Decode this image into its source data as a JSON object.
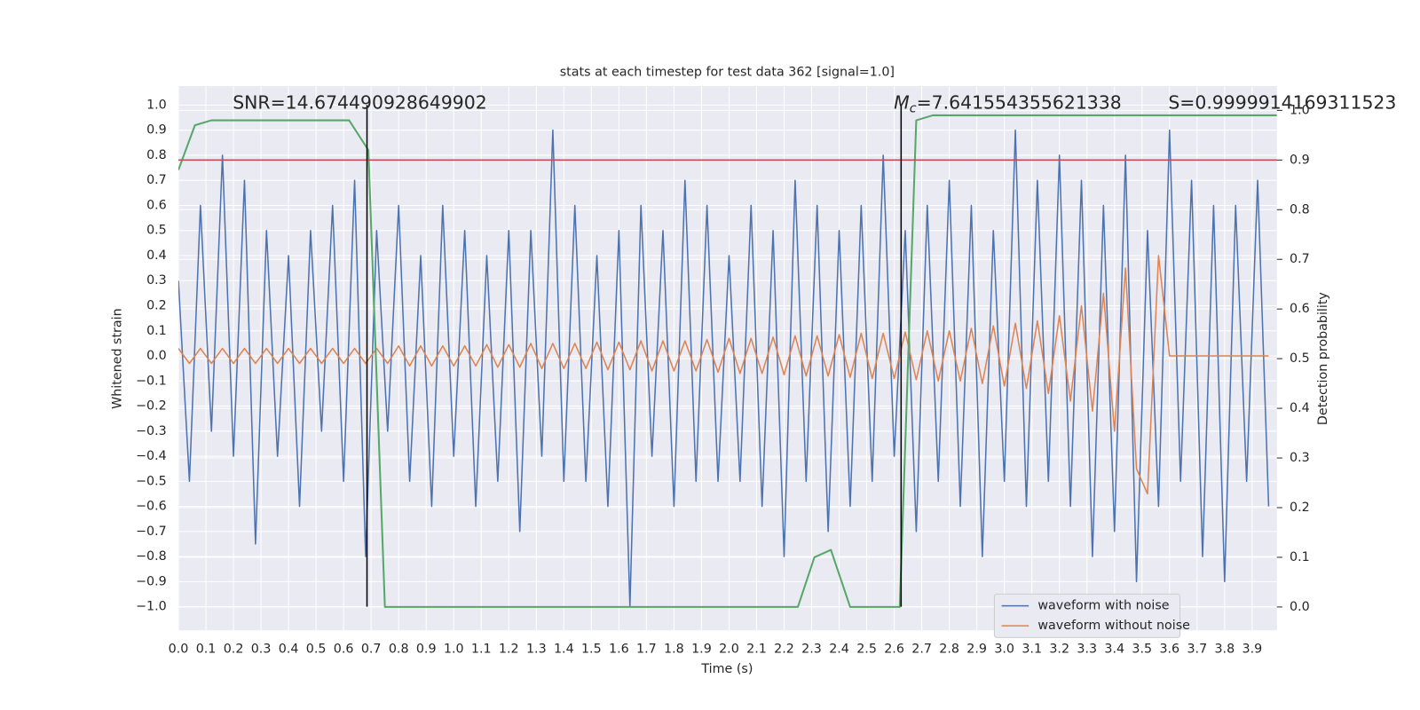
{
  "chart_data": {
    "type": "line",
    "title": "stats at each timestep for test data 362 [signal=1.0]",
    "xlabel": "Time (s)",
    "ylabel": "Whitened strain",
    "y2label": "Detection probability",
    "grid": true,
    "legend": "lower right",
    "xlim": [
      0,
      3.99
    ],
    "ylim": [
      -1.094,
      1.076
    ],
    "y2lim": [
      -0.047,
      1.049
    ],
    "xticks": [
      {
        "value": 0,
        "label": "0.0"
      },
      {
        "value": 0.1,
        "label": "0.1"
      },
      {
        "value": 0.2,
        "label": "0.2"
      },
      {
        "value": 0.3,
        "label": "0.3"
      },
      {
        "value": 0.4,
        "label": "0.4"
      },
      {
        "value": 0.5,
        "label": "0.5"
      },
      {
        "value": 0.6,
        "label": "0.6"
      },
      {
        "value": 0.7,
        "label": "0.7"
      },
      {
        "value": 0.8,
        "label": "0.8"
      },
      {
        "value": 0.9,
        "label": "0.9"
      },
      {
        "value": 1,
        "label": "1.0"
      },
      {
        "value": 1.1,
        "label": "1.1"
      },
      {
        "value": 1.2,
        "label": "1.2"
      },
      {
        "value": 1.3,
        "label": "1.3"
      },
      {
        "value": 1.4,
        "label": "1.4"
      },
      {
        "value": 1.5,
        "label": "1.5"
      },
      {
        "value": 1.6,
        "label": "1.6"
      },
      {
        "value": 1.7,
        "label": "1.7"
      },
      {
        "value": 1.8,
        "label": "1.8"
      },
      {
        "value": 1.9,
        "label": "1.9"
      },
      {
        "value": 2,
        "label": "2.0"
      },
      {
        "value": 2.1,
        "label": "2.1"
      },
      {
        "value": 2.2,
        "label": "2.2"
      },
      {
        "value": 2.3,
        "label": "2.3"
      },
      {
        "value": 2.4,
        "label": "2.4"
      },
      {
        "value": 2.5,
        "label": "2.5"
      },
      {
        "value": 2.6,
        "label": "2.6"
      },
      {
        "value": 2.7,
        "label": "2.7"
      },
      {
        "value": 2.8,
        "label": "2.8"
      },
      {
        "value": 2.9,
        "label": "2.9"
      },
      {
        "value": 3,
        "label": "3.0"
      },
      {
        "value": 3.1,
        "label": "3.1"
      },
      {
        "value": 3.2,
        "label": "3.2"
      },
      {
        "value": 3.3,
        "label": "3.3"
      },
      {
        "value": 3.4,
        "label": "3.4"
      },
      {
        "value": 3.5,
        "label": "3.5"
      },
      {
        "value": 3.6,
        "label": "3.6"
      },
      {
        "value": 3.7,
        "label": "3.7"
      },
      {
        "value": 3.8,
        "label": "3.8"
      },
      {
        "value": 3.9,
        "label": "3.9"
      }
    ],
    "yticks": [
      {
        "value": -1,
        "label": "−1.0"
      },
      {
        "value": -0.9,
        "label": "−0.9"
      },
      {
        "value": -0.8,
        "label": "−0.8"
      },
      {
        "value": -0.7,
        "label": "−0.7"
      },
      {
        "value": -0.6,
        "label": "−0.6"
      },
      {
        "value": -0.5,
        "label": "−0.5"
      },
      {
        "value": -0.4,
        "label": "−0.4"
      },
      {
        "value": -0.3,
        "label": "−0.3"
      },
      {
        "value": -0.2,
        "label": "−0.2"
      },
      {
        "value": -0.1,
        "label": "−0.1"
      },
      {
        "value": 0,
        "label": "0.0"
      },
      {
        "value": 0.1,
        "label": "0.1"
      },
      {
        "value": 0.2,
        "label": "0.2"
      },
      {
        "value": 0.3,
        "label": "0.3"
      },
      {
        "value": 0.4,
        "label": "0.4"
      },
      {
        "value": 0.5,
        "label": "0.5"
      },
      {
        "value": 0.6,
        "label": "0.6"
      },
      {
        "value": 0.7,
        "label": "0.7"
      },
      {
        "value": 0.8,
        "label": "0.8"
      },
      {
        "value": 0.9,
        "label": "0.9"
      },
      {
        "value": 1,
        "label": "1.0"
      }
    ],
    "y2ticks": [
      {
        "value": 0,
        "label": "0.0"
      },
      {
        "value": 0.1,
        "label": "0.1"
      },
      {
        "value": 0.2,
        "label": "0.2"
      },
      {
        "value": 0.3,
        "label": "0.3"
      },
      {
        "value": 0.4,
        "label": "0.4"
      },
      {
        "value": 0.5,
        "label": "0.5"
      },
      {
        "value": 0.6,
        "label": "0.6"
      },
      {
        "value": 0.7,
        "label": "0.7"
      },
      {
        "value": 0.8,
        "label": "0.8"
      },
      {
        "value": 0.9,
        "label": "0.9"
      },
      {
        "value": 1,
        "label": "1.0"
      }
    ],
    "x": [
      0,
      0.04,
      0.08,
      0.12,
      0.16,
      0.2,
      0.24,
      0.28,
      0.32,
      0.36,
      0.4,
      0.44,
      0.48,
      0.52,
      0.56,
      0.6,
      0.64,
      0.68,
      0.72,
      0.76,
      0.8,
      0.84,
      0.88,
      0.92,
      0.96,
      1,
      1.04,
      1.08,
      1.12,
      1.16,
      1.2,
      1.24,
      1.28,
      1.32,
      1.36,
      1.4,
      1.44,
      1.48,
      1.52,
      1.56,
      1.6,
      1.64,
      1.68,
      1.72,
      1.76,
      1.8,
      1.84,
      1.88,
      1.92,
      1.96,
      2,
      2.04,
      2.08,
      2.12,
      2.16,
      2.2,
      2.24,
      2.28,
      2.32,
      2.36,
      2.4,
      2.44,
      2.48,
      2.52,
      2.56,
      2.6,
      2.64,
      2.68,
      2.72,
      2.76,
      2.8,
      2.84,
      2.88,
      2.92,
      2.96,
      3,
      3.04,
      3.08,
      3.12,
      3.16,
      3.2,
      3.24,
      3.28,
      3.32,
      3.36,
      3.4,
      3.44,
      3.48,
      3.52,
      3.56,
      3.6,
      3.64,
      3.68,
      3.72,
      3.76,
      3.8,
      3.84,
      3.88,
      3.92,
      3.96
    ],
    "series": [
      {
        "name": "waveform with noise",
        "color": "#4c72b0",
        "values": [
          0.3,
          -0.5,
          0.6,
          -0.3,
          0.8,
          -0.4,
          0.7,
          -0.75,
          0.5,
          -0.4,
          0.4,
          -0.6,
          0.5,
          -0.3,
          0.6,
          -0.5,
          0.7,
          -0.8,
          0.5,
          -0.3,
          0.6,
          -0.5,
          0.4,
          -0.6,
          0.6,
          -0.4,
          0.5,
          -0.6,
          0.4,
          -0.5,
          0.5,
          -0.7,
          0.5,
          -0.4,
          0.9,
          -0.5,
          0.6,
          -0.5,
          0.4,
          -0.6,
          0.5,
          -1.0,
          0.6,
          -0.4,
          0.5,
          -0.6,
          0.7,
          -0.5,
          0.6,
          -0.5,
          0.4,
          -0.5,
          0.6,
          -0.6,
          0.5,
          -0.8,
          0.7,
          -0.5,
          0.6,
          -0.7,
          0.5,
          -0.6,
          0.6,
          -0.5,
          0.8,
          -0.4,
          0.5,
          -0.7,
          0.6,
          -0.5,
          0.7,
          -0.6,
          0.6,
          -0.8,
          0.5,
          -0.5,
          0.9,
          -0.6,
          0.7,
          -0.5,
          0.8,
          -0.6,
          0.7,
          -0.8,
          0.6,
          -0.7,
          0.8,
          -0.9,
          0.5,
          -0.6,
          0.9,
          -0.5,
          0.7,
          -0.8,
          0.6,
          -0.9,
          0.6,
          -0.5,
          0.7,
          -0.6
        ]
      },
      {
        "name": "waveform without noise",
        "color": "#dd8452",
        "values": [
          0.03,
          -0.03,
          0.03,
          -0.03,
          0.03,
          -0.03,
          0.03,
          -0.03,
          0.03,
          -0.03,
          0.03,
          -0.03,
          0.03,
          -0.03,
          0.03,
          -0.03,
          0.03,
          -0.03,
          0.03,
          -0.03,
          0.04,
          -0.04,
          0.04,
          -0.04,
          0.04,
          -0.04,
          0.04,
          -0.04,
          0.045,
          -0.045,
          0.045,
          -0.045,
          0.05,
          -0.05,
          0.05,
          -0.05,
          0.05,
          -0.05,
          0.055,
          -0.055,
          0.055,
          -0.055,
          0.06,
          -0.06,
          0.06,
          -0.06,
          0.06,
          -0.06,
          0.065,
          -0.065,
          0.07,
          -0.07,
          0.07,
          -0.07,
          0.075,
          -0.075,
          0.08,
          -0.08,
          0.08,
          -0.08,
          0.085,
          -0.085,
          0.09,
          -0.09,
          0.09,
          -0.09,
          0.095,
          -0.095,
          0.1,
          -0.1,
          0.1,
          -0.1,
          0.11,
          -0.11,
          0.12,
          -0.12,
          0.13,
          -0.13,
          0.14,
          -0.15,
          0.16,
          -0.18,
          0.2,
          -0.22,
          0.25,
          -0.3,
          0.35,
          -0.45,
          -0.55,
          0.4,
          0.0,
          0.0,
          0.0,
          0.0,
          0.0,
          0.0,
          0.0,
          0.0,
          0.0,
          0.0
        ]
      },
      {
        "axis": "y2",
        "color": "#55a868",
        "x": [
          0,
          0.06,
          0.12,
          0.62,
          0.69,
          0.75,
          2.25,
          2.31,
          2.37,
          2.44,
          2.62,
          2.68,
          2.74,
          3.99
        ],
        "values": [
          0.88,
          0.97,
          0.98,
          0.98,
          0.92,
          0.0,
          0.0,
          0.1,
          0.115,
          0.0,
          0.0,
          0.98,
          0.99,
          0.99
        ]
      }
    ],
    "hlines": [
      {
        "value": 0.9,
        "axis": "y2",
        "color": "#c44e52"
      }
    ],
    "vlines": [
      {
        "value": 0.685,
        "ymin": -1,
        "ymax": 1,
        "color": "#000000"
      },
      {
        "value": 2.625,
        "ymin": -1,
        "ymax": 1,
        "color": "#000000"
      }
    ],
    "annotations": [
      {
        "text": "SNR=14.674490928649902"
      },
      {
        "symbol": "M",
        "subscript": "c",
        "text": "=7.641554355621338"
      },
      {
        "text": "S=0.9999914169311523"
      }
    ]
  }
}
